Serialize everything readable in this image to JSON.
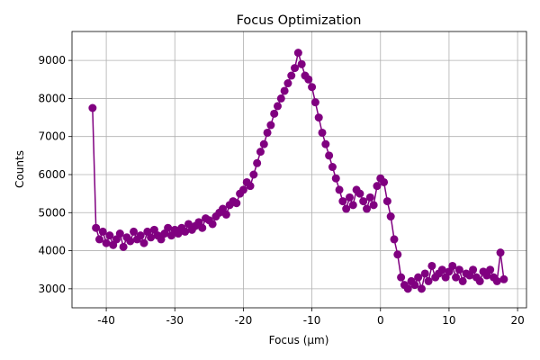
{
  "chart_data": {
    "type": "line",
    "title": "Focus Optimization",
    "x_label": "Focus (µm)",
    "y_label": "Counts",
    "x": [
      -42,
      -41.5,
      -41,
      -40.5,
      -40,
      -39.5,
      -39,
      -38.5,
      -38,
      -37.5,
      -37,
      -36.5,
      -36,
      -35.5,
      -35,
      -34.5,
      -34,
      -33.5,
      -33,
      -32.5,
      -32,
      -31.5,
      -31,
      -30.5,
      -30,
      -29.5,
      -29,
      -28.5,
      -28,
      -27.5,
      -27,
      -26.5,
      -26,
      -25.5,
      -25,
      -24.5,
      -24,
      -23.5,
      -23,
      -22.5,
      -22,
      -21.5,
      -21,
      -20.5,
      -20,
      -19.5,
      -19,
      -18.5,
      -18,
      -17.5,
      -17,
      -16.5,
      -16,
      -15.5,
      -15,
      -14.5,
      -14,
      -13.5,
      -13,
      -12.5,
      -12,
      -11.5,
      -11,
      -10.5,
      -10,
      -9.5,
      -9,
      -8.5,
      -8,
      -7.5,
      -7,
      -6.5,
      -6,
      -5.5,
      -5,
      -4.5,
      -4,
      -3.5,
      -3,
      -2.5,
      -2,
      -1.5,
      -1,
      -0.5,
      0,
      0.5,
      1,
      1.5,
      2,
      2.5,
      3,
      3.5,
      4,
      4.5,
      5,
      5.5,
      6,
      6.5,
      7,
      7.5,
      8,
      8.5,
      9,
      9.5,
      10,
      10.5,
      11,
      11.5,
      12,
      12.5,
      13,
      13.5,
      14,
      14.5,
      15,
      15.5,
      16,
      16.5,
      17,
      17.5,
      18
    ],
    "series": [
      {
        "color": "#800080",
        "values": [
          7750,
          4600,
          4300,
          4500,
          4200,
          4400,
          4150,
          4300,
          4450,
          4100,
          4350,
          4250,
          4500,
          4300,
          4400,
          4200,
          4500,
          4350,
          4550,
          4400,
          4300,
          4450,
          4600,
          4400,
          4550,
          4450,
          4600,
          4500,
          4700,
          4550,
          4650,
          4750,
          4600,
          4850,
          4800,
          4700,
          4900,
          5000,
          5100,
          4950,
          5200,
          5300,
          5250,
          5500,
          5600,
          5800,
          5700,
          6000,
          6300,
          6600,
          6800,
          7100,
          7300,
          7600,
          7800,
          8000,
          8200,
          8400,
          8600,
          8800,
          9200,
          8900,
          8600,
          8500,
          8300,
          7900,
          7500,
          7100,
          6800,
          6500,
          6200,
          5900,
          5600,
          5300,
          5100,
          5400,
          5200,
          5600,
          5500,
          5300,
          5100,
          5400,
          5200,
          5700,
          5900,
          5800,
          5300,
          4900,
          4300,
          3900,
          3300,
          3100,
          3000,
          3200,
          3100,
          3300,
          3000,
          3400,
          3200,
          3600,
          3300,
          3400,
          3500,
          3300,
          3450,
          3600,
          3300,
          3500,
          3200,
          3400,
          3350,
          3500,
          3300,
          3200,
          3450,
          3350,
          3500,
          3300,
          3200,
          3950,
          3250
        ]
      }
    ],
    "xlim": [
      -45,
      21.3
    ],
    "ylim": [
      2500,
      9760
    ],
    "xticks": [
      -40,
      -30,
      -20,
      -10,
      0,
      10,
      20
    ],
    "yticks": [
      3000,
      4000,
      5000,
      6000,
      7000,
      8000,
      9000
    ],
    "grid": true
  }
}
